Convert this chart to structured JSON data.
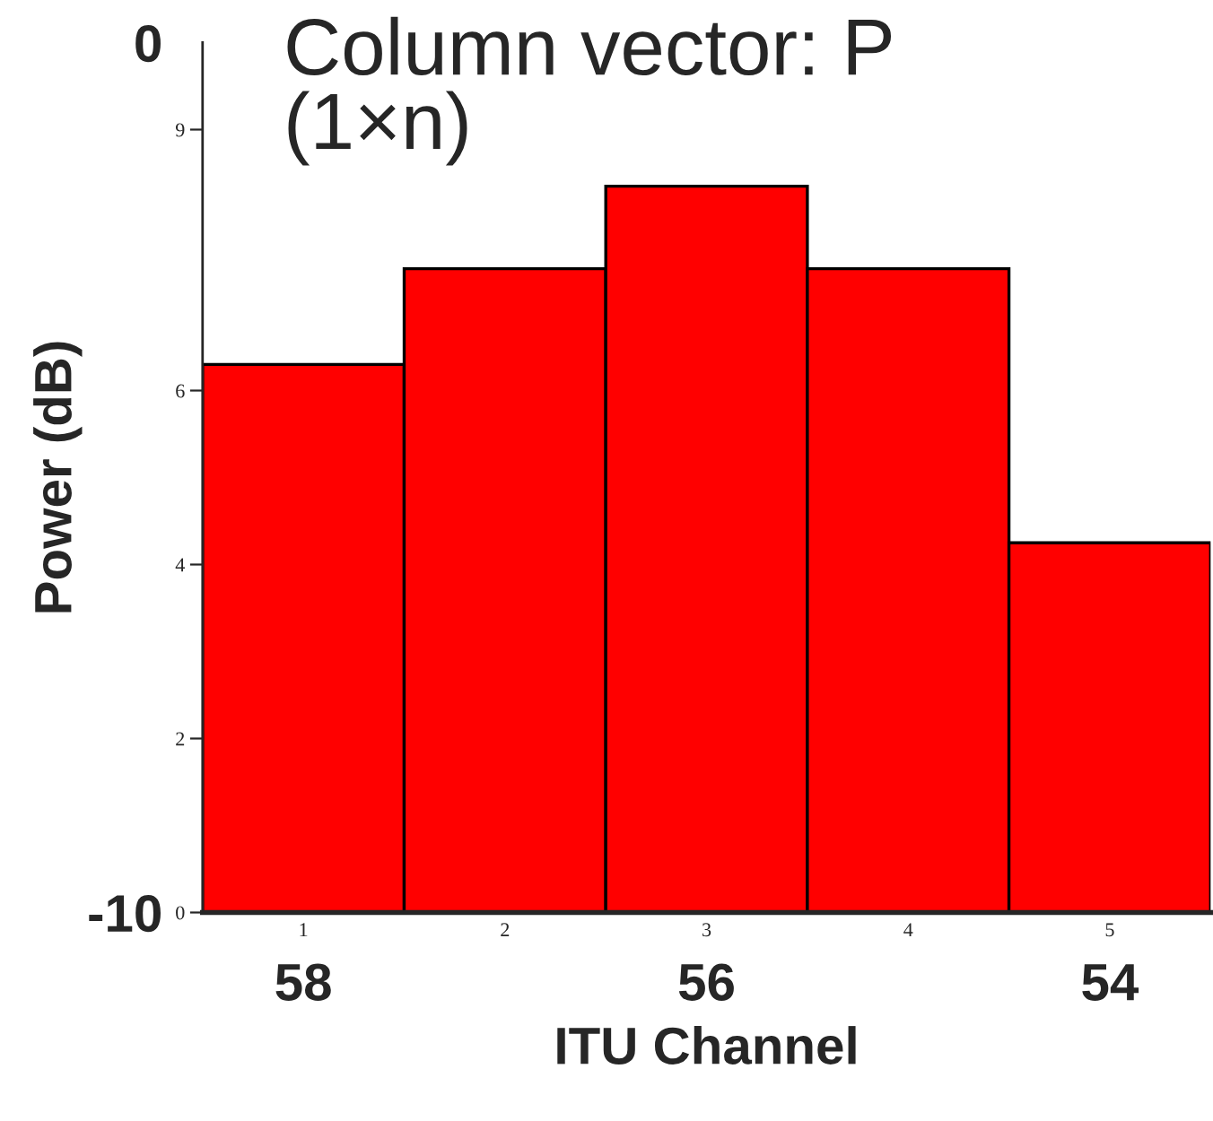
{
  "chart_data": {
    "type": "bar",
    "title": "Column vector: P (1×n)",
    "x2label": "ITU Channel",
    "y2label": "Power (dB)",
    "categories": [
      "1",
      "2",
      "3",
      "4",
      "5"
    ],
    "values": [
      6.3,
      7.4,
      8.35,
      7.4,
      4.25
    ],
    "color": "#ff0000",
    "ylim": [
      0,
      10
    ],
    "yticks": [
      0,
      2,
      4,
      6,
      9
    ],
    "y2lim": [
      -10,
      0
    ],
    "y2ticks": [
      -10,
      0
    ],
    "x2lim": [
      58.5,
      53.5
    ],
    "x2ticks": [
      58,
      56,
      54
    ],
    "grid": false
  }
}
